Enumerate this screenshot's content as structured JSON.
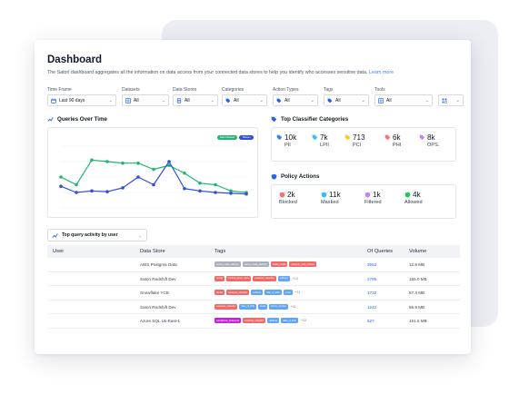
{
  "header": {
    "title": "Dashboard",
    "subtitle": "The Satori dashboard aggregates all the information on data access from your connected data stores to help you identify who accesses sensitive data.",
    "learn_more": "Learn more"
  },
  "filters": [
    {
      "label": "Time Frame",
      "value": "Last 90 days",
      "icon": "calendar-icon"
    },
    {
      "label": "Datasets",
      "value": "All",
      "icon": "grid-icon"
    },
    {
      "label": "Data Stores",
      "value": "All",
      "icon": "database-icon"
    },
    {
      "label": "Categories",
      "value": "All",
      "icon": "tag-icon"
    },
    {
      "label": "Action Types",
      "value": "All",
      "icon": "tag-icon"
    },
    {
      "label": "Tags",
      "value": "All",
      "icon": "tag-icon"
    },
    {
      "label": "Tools",
      "value": "All",
      "icon": "grid-icon"
    }
  ],
  "queries_over_time": {
    "title": "Queries Over Time",
    "legend": [
      {
        "label": "Satori Redash",
        "color": "#22b573"
      },
      {
        "label": "Tableau",
        "color": "#2f4fd8"
      }
    ]
  },
  "chart_data": {
    "type": "line",
    "title": "Queries Over Time",
    "x": [
      1,
      2,
      3,
      4,
      5,
      6,
      7,
      8,
      9,
      10,
      11,
      12,
      13
    ],
    "series": [
      {
        "name": "Satori Redash",
        "color": "#22b573",
        "values": [
          40,
          30,
          62,
          60,
          58,
          58,
          50,
          55,
          45,
          32,
          30,
          22,
          20
        ]
      },
      {
        "name": "Tableau",
        "color": "#2f4fd8",
        "values": [
          28,
          20,
          22,
          21,
          26,
          40,
          30,
          60,
          25,
          22,
          20,
          19,
          18
        ]
      }
    ],
    "ylim": [
      0,
      80
    ],
    "grid": true
  },
  "top_classifier": {
    "title": "Top Classifier Categories",
    "items": [
      {
        "value": "10k",
        "label": "PII",
        "color": "#3b82f6"
      },
      {
        "value": "7k",
        "label": "LPII",
        "color": "#38bdf8"
      },
      {
        "value": "713",
        "label": "PCI",
        "color": "#facc15"
      },
      {
        "value": "6k",
        "label": "PHI",
        "color": "#f87171"
      },
      {
        "value": "8k",
        "label": "OPS.",
        "color": "#c084fc"
      }
    ]
  },
  "policy_actions": {
    "title": "Policy Actions",
    "items": [
      {
        "value": "2k",
        "label": "Blocked",
        "color": "#f87171"
      },
      {
        "value": "11k",
        "label": "Masked",
        "color": "#38bdf8"
      },
      {
        "value": "1k",
        "label": "Filtered",
        "color": "#c084fc"
      },
      {
        "value": "4k",
        "label": "Allowed",
        "color": "#22c55e"
      }
    ]
  },
  "activity_dropdown": {
    "label": "Top query activity by user"
  },
  "table": {
    "headers": {
      "user": "User",
      "store": "Data Store",
      "tags": "Tags",
      "queries": "Of Queries",
      "volume": "Volume"
    },
    "rows": [
      {
        "user": "",
        "store": "AWS Postgres Data",
        "queries": "3552",
        "volume": "12.8 MB",
        "more": "",
        "tags": [
          {
            "text": "social_media_address",
            "color": "#aab0ba"
          },
          {
            "text": "social_media_address",
            "color": "#aab0ba"
          },
          {
            "text": "social_media",
            "color": "#ef6b6b"
          },
          {
            "text": "passport_card_number",
            "color": "#ef6b6b"
          }
        ]
      },
      {
        "user": "",
        "store": "Satori Redshift Dev",
        "queries": "2785",
        "volume": "155.0 MB",
        "more": "+13",
        "tags": [
          {
            "text": "dental",
            "color": "#ef6b6b"
          },
          {
            "text": "medical_given_name",
            "color": "#ef6b6b"
          },
          {
            "text": "customer_classifier",
            "color": "#ef6b6b"
          },
          {
            "text": "address",
            "color": "#60a5fa"
          }
        ]
      },
      {
        "user": "",
        "store": "Snowflake YCB",
        "queries": "1732",
        "volume": "57.3 MB",
        "more": "+11",
        "tags": [
          {
            "text": "dental",
            "color": "#ef6b6b"
          },
          {
            "text": "customer_classifier",
            "color": "#ef6b6b"
          },
          {
            "text": "address",
            "color": "#60a5fa"
          },
          {
            "text": "date_of_birth",
            "color": "#60a5fa"
          },
          {
            "text": "email",
            "color": "#60a5fa"
          }
        ]
      },
      {
        "user": "",
        "store": "Satori Redshift Dev",
        "queries": "1242",
        "volume": "55.9 MB",
        "more": "+11",
        "tags": [
          {
            "text": "customer_classifier",
            "color": "#ef6b6b"
          },
          {
            "text": "date_of_birth",
            "color": "#60a5fa"
          },
          {
            "text": "email",
            "color": "#60a5fa"
          },
          {
            "text": "phone_number",
            "color": "#60a5fa"
          }
        ]
      },
      {
        "user": "",
        "store": "Azure SQL Us-East-1",
        "queries": "627",
        "volume": "151.6 MB",
        "more": "+13",
        "tags": [
          {
            "text": "compliance_statement",
            "color": "#c026d3"
          },
          {
            "text": "customer_classifier",
            "color": "#ef6b6b"
          },
          {
            "text": "address",
            "color": "#60a5fa"
          },
          {
            "text": "date_of_birth",
            "color": "#60a5fa"
          }
        ]
      }
    ]
  }
}
